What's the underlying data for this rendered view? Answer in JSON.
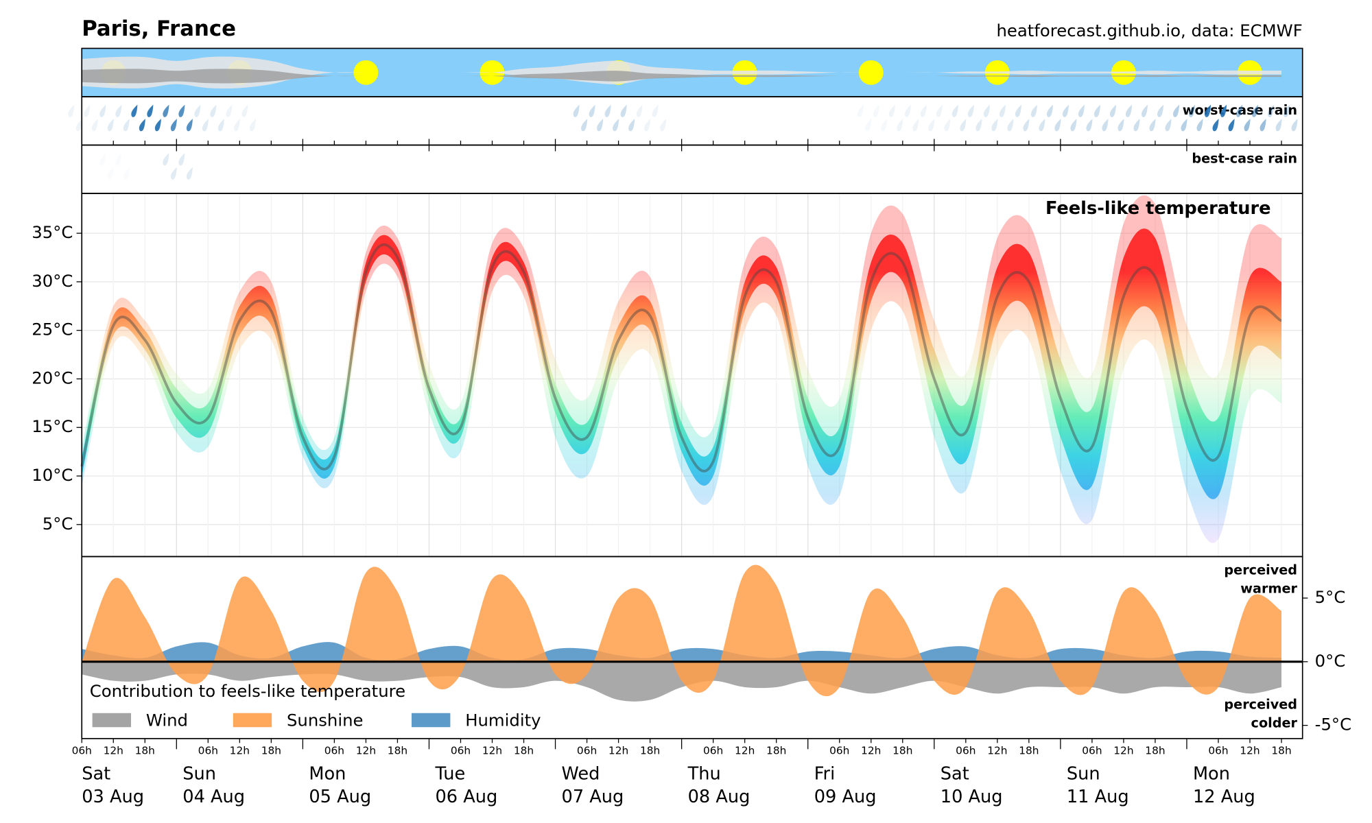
{
  "chart_data": {
    "title": "Paris, France",
    "subtitle": "heatforecast.github.io, data: ECMWF",
    "x": [
      6,
      12,
      18,
      24,
      30,
      36,
      42,
      48,
      54,
      60,
      66,
      72,
      78,
      84,
      90,
      96,
      102,
      108,
      114,
      120,
      126,
      132,
      138,
      144,
      150,
      156,
      162,
      168,
      174,
      180,
      186,
      192,
      198,
      204,
      210,
      216,
      222,
      228,
      234
    ],
    "xlim": [
      6,
      238
    ],
    "xticks": [
      {
        "value": 6,
        "label": "06h"
      },
      {
        "value": 12,
        "label": "12h"
      },
      {
        "value": 18,
        "label": "18h"
      },
      {
        "value": 30,
        "label": "06h"
      },
      {
        "value": 36,
        "label": "12h"
      },
      {
        "value": 42,
        "label": "18h"
      },
      {
        "value": 54,
        "label": "06h"
      },
      {
        "value": 60,
        "label": "12h"
      },
      {
        "value": 66,
        "label": "18h"
      },
      {
        "value": 78,
        "label": "06h"
      },
      {
        "value": 84,
        "label": "12h"
      },
      {
        "value": 90,
        "label": "18h"
      },
      {
        "value": 102,
        "label": "06h"
      },
      {
        "value": 108,
        "label": "12h"
      },
      {
        "value": 114,
        "label": "18h"
      },
      {
        "value": 126,
        "label": "06h"
      },
      {
        "value": 132,
        "label": "12h"
      },
      {
        "value": 138,
        "label": "18h"
      },
      {
        "value": 150,
        "label": "06h"
      },
      {
        "value": 156,
        "label": "12h"
      },
      {
        "value": 162,
        "label": "18h"
      },
      {
        "value": 174,
        "label": "06h"
      },
      {
        "value": 180,
        "label": "12h"
      },
      {
        "value": 186,
        "label": "18h"
      },
      {
        "value": 198,
        "label": "06h"
      },
      {
        "value": 204,
        "label": "12h"
      },
      {
        "value": 210,
        "label": "18h"
      },
      {
        "value": 222,
        "label": "06h"
      },
      {
        "value": 228,
        "label": "12h"
      },
      {
        "value": 234,
        "label": "18h"
      }
    ],
    "day_ticks": [
      {
        "value": 0,
        "label": [
          "Sat",
          "03 Aug"
        ]
      },
      {
        "value": 24,
        "label": [
          "Sun",
          "04 Aug"
        ]
      },
      {
        "value": 48,
        "label": [
          "Mon",
          "05 Aug"
        ]
      },
      {
        "value": 72,
        "label": [
          "Tue",
          "06 Aug"
        ]
      },
      {
        "value": 96,
        "label": [
          "Wed",
          "07 Aug"
        ]
      },
      {
        "value": 120,
        "label": [
          "Thu",
          "08 Aug"
        ]
      },
      {
        "value": 144,
        "label": [
          "Fri",
          "09 Aug"
        ]
      },
      {
        "value": 168,
        "label": [
          "Sat",
          "10 Aug"
        ]
      },
      {
        "value": 192,
        "label": [
          "Sun",
          "11 Aug"
        ]
      },
      {
        "value": 216,
        "label": [
          "Mon",
          "12 Aug"
        ]
      }
    ],
    "grid": true,
    "panels": [
      {
        "type": "sky",
        "color": "#87cefa",
        "cloud_cover": [
          0.7,
          0.8,
          0.8,
          0.6,
          0.8,
          0.8,
          0.6,
          0.2,
          0,
          0,
          0,
          0,
          0,
          0,
          0.2,
          0.3,
          0.5,
          0.6,
          0.3,
          0.2,
          0.1,
          0.1,
          0.1,
          0.05,
          0,
          0,
          0,
          0,
          0.05,
          0.05,
          0.1,
          0.05,
          0.05,
          0.05,
          0.1,
          0.05,
          0.1,
          0.1,
          0.1
        ]
      },
      {
        "type": "rain",
        "label": "worst-case rain",
        "color": "#1f6fb0",
        "values": [
          0.2,
          0.3,
          0.9,
          0.8,
          0.3,
          0.2,
          0,
          0,
          0,
          0,
          0,
          0,
          0,
          0,
          0,
          0,
          0.4,
          0.4,
          0.2,
          0,
          0,
          0,
          0,
          0,
          0,
          0.15,
          0.2,
          0.2,
          0.3,
          0.3,
          0.35,
          0.4,
          0.4,
          0.4,
          0.4,
          0.5,
          0.9,
          0.6,
          0.4
        ]
      },
      {
        "type": "rain",
        "label": "best-case rain",
        "color": "#1f6fb0",
        "values": [
          0,
          0.1,
          0,
          0.3,
          0,
          0,
          0,
          0,
          0,
          0,
          0,
          0,
          0,
          0,
          0,
          0,
          0,
          0,
          0,
          0,
          0,
          0,
          0,
          0,
          0,
          0,
          0,
          0,
          0,
          0,
          0,
          0,
          0,
          0,
          0,
          0,
          0,
          0,
          0
        ]
      },
      {
        "type": "band",
        "title": "Feels-like temperature",
        "ylim": [
          1.7,
          39.1
        ],
        "yticks": [
          {
            "value": 5,
            "label": "5°C"
          },
          {
            "value": 10,
            "label": "10°C"
          },
          {
            "value": 15,
            "label": "15°C"
          },
          {
            "value": 20,
            "label": "20°C"
          },
          {
            "value": 25,
            "label": "25°C"
          },
          {
            "value": 30,
            "label": "30°C"
          },
          {
            "value": 35,
            "label": "35°C"
          }
        ],
        "colormap": [
          {
            "value": 3,
            "color": "#c9a0ff"
          },
          {
            "value": 8,
            "color": "#1ea0f0"
          },
          {
            "value": 12,
            "color": "#10c8e0"
          },
          {
            "value": 16,
            "color": "#40e8a8"
          },
          {
            "value": 20,
            "color": "#c8f0a8"
          },
          {
            "value": 24,
            "color": "#ffb060"
          },
          {
            "value": 27,
            "color": "#ff6a20"
          },
          {
            "value": 31,
            "color": "#ff0000"
          }
        ],
        "values": [
          11,
          25.5,
          24,
          17.5,
          16,
          26,
          27,
          14,
          12,
          31,
          32.5,
          19,
          15,
          31.5,
          31,
          18,
          14,
          24,
          26.5,
          14,
          11.5,
          28.5,
          30,
          16,
          13,
          30,
          32,
          20,
          14.5,
          28.5,
          30,
          18,
          13,
          28.5,
          30.5,
          17,
          12,
          26.5,
          26
        ],
        "inner_low": [
          10,
          24.5,
          23,
          16,
          14.5,
          24.5,
          25.5,
          13,
          11,
          30,
          31.5,
          18,
          14,
          30.5,
          30,
          16.5,
          12.5,
          22.5,
          25,
          12.5,
          10,
          27,
          28.5,
          14,
          11,
          28,
          30,
          17,
          11.5,
          25.5,
          27,
          14,
          9,
          24.5,
          26.5,
          13,
          8,
          22.5,
          22
        ],
        "inner_high": [
          12,
          26.5,
          25,
          19,
          17.5,
          27.5,
          28.5,
          15,
          13,
          32,
          33.5,
          20,
          16,
          32.5,
          32,
          19.5,
          15.5,
          25.5,
          28,
          15.5,
          13,
          30,
          31.5,
          18,
          15,
          32,
          34,
          23,
          17.5,
          31.5,
          33,
          22,
          17,
          32.5,
          34.5,
          21,
          16,
          30.5,
          30
        ],
        "outer_low": [
          9,
          23.5,
          22,
          14.5,
          13,
          23,
          24,
          12,
          10,
          29,
          30.5,
          16.5,
          12.5,
          29,
          28.5,
          14,
          10,
          20,
          22.5,
          10.5,
          8,
          25,
          26.5,
          11,
          8,
          25,
          27,
          14,
          8.5,
          22.5,
          24,
          10.5,
          5.5,
          21,
          23,
          8.5,
          3.5,
          18,
          17.5
        ],
        "outer_high": [
          13,
          27.5,
          26,
          20.5,
          19,
          29,
          30,
          16,
          14,
          33,
          34.5,
          21.5,
          17.5,
          34,
          33.5,
          22,
          18,
          28,
          30.5,
          17.5,
          15,
          32,
          33.5,
          21,
          18,
          35,
          37,
          26,
          20.5,
          34.5,
          36,
          25.5,
          20.5,
          36,
          38,
          25.5,
          20.5,
          35,
          34.5
        ]
      },
      {
        "type": "area",
        "ylim": [
          -6.04,
          8.26
        ],
        "yticks": [
          {
            "value": 5,
            "label": "5°C"
          },
          {
            "value": 0,
            "label": "0°C"
          },
          {
            "value": -5,
            "label": "-5°C"
          }
        ],
        "legend_title": "Contribution to feels-like temperature",
        "warmer": [
          "perceived",
          "warmer"
        ],
        "colder": [
          "perceived",
          "colder"
        ],
        "series": [
          {
            "name": "Wind",
            "color": "#9a9a9a",
            "values": [
              -1,
              -1.5,
              -1.5,
              -1,
              -1,
              -1.5,
              -1.2,
              -1,
              -1,
              -1.5,
              -1.5,
              -1.2,
              -1.2,
              -2,
              -2,
              -1.5,
              -2,
              -3,
              -3,
              -2,
              -1.5,
              -2,
              -2,
              -1.5,
              -2,
              -2.5,
              -2,
              -1.5,
              -2,
              -2.5,
              -2,
              -2,
              -2,
              -2.5,
              -2,
              -2,
              -2,
              -2.5,
              -2
            ]
          },
          {
            "name": "Sunshine",
            "color": "#ff9e4a",
            "values": [
              0,
              6.5,
              3.5,
              -1,
              -1,
              6.5,
              4,
              -1.5,
              -1.5,
              7,
              5.5,
              -1.5,
              -1,
              6.5,
              5,
              -1,
              -1,
              5,
              5,
              -1.5,
              -1.5,
              7,
              6,
              -1.5,
              -2,
              5.5,
              3.5,
              -1.5,
              -2,
              5.5,
              4,
              -1.5,
              -2,
              5.5,
              4,
              -1.5,
              -2,
              5,
              4
            ]
          },
          {
            "name": "Humidity",
            "color": "#4a8fc4",
            "values": [
              1,
              0.5,
              0.3,
              1.2,
              1.5,
              0.5,
              0.3,
              1.2,
              1.5,
              0.3,
              0.2,
              1,
              1.2,
              0.3,
              0.2,
              1,
              1,
              0.5,
              0.3,
              1,
              1,
              0.5,
              0.3,
              0.8,
              0.8,
              0.5,
              0.3,
              1,
              1.2,
              0.5,
              0.3,
              1,
              1,
              0.5,
              0.3,
              0.8,
              0.8,
              0.4,
              0.3
            ]
          }
        ]
      }
    ]
  }
}
